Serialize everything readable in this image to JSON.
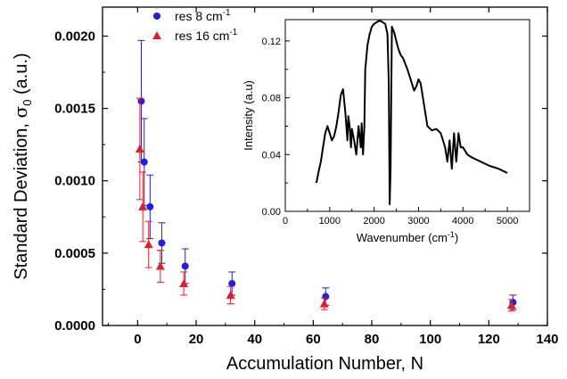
{
  "chart_data": [
    {
      "type": "scatter",
      "xlabel": "Accumulation Number, N",
      "ylabel_main": "Standard Deviation, ",
      "ylabel_sigma": "σ",
      "ylabel_sub": "0",
      "ylabel_unit": " (a.u.)",
      "xlim": [
        -12,
        140
      ],
      "ylim": [
        0,
        0.0022
      ],
      "xticks": [
        0,
        20,
        40,
        60,
        80,
        100,
        120,
        140
      ],
      "xtick_labels": [
        "0",
        "20",
        "40",
        "60",
        "80",
        "100",
        "120",
        "140"
      ],
      "yticks": [
        0,
        0.0005,
        0.001,
        0.0015,
        0.002
      ],
      "ytick_labels": [
        "0.0000",
        "0.0005",
        "0.0010",
        "0.0015",
        "0.0020"
      ],
      "legend_position": "top-left",
      "series": [
        {
          "name_main": "res 8 cm",
          "name_sup": "-1",
          "color": "#1f1fe0",
          "marker": "circle",
          "x": [
            1,
            2,
            4,
            8,
            16,
            32,
            64,
            128
          ],
          "y": [
            0.00155,
            0.00113,
            0.00082,
            0.00057,
            0.00041,
            0.00029,
            0.0002,
            0.00016
          ],
          "err": [
            0.00042,
            0.0003,
            0.00022,
            0.00014,
            0.00012,
            8e-05,
            6e-05,
            5e-05
          ]
        },
        {
          "name_main": "res 16 cm",
          "name_sup": "-1",
          "color": "#e01f2a",
          "marker": "triangle",
          "x": [
            1,
            2,
            4,
            8,
            16,
            32,
            64,
            128
          ],
          "y": [
            0.00122,
            0.00082,
            0.00056,
            0.00041,
            0.00029,
            0.00021,
            0.00015,
            0.00014
          ],
          "err": [
            0.00035,
            0.00024,
            0.00016,
            0.00011,
            8e-05,
            6e-05,
            4e-05,
            4e-05
          ]
        }
      ]
    },
    {
      "type": "line",
      "xlabel_main": "Wavenumber (cm",
      "xlabel_sup": "-1",
      "xlabel_end": ")",
      "ylabel": "Intensity (a.u)",
      "xlim": [
        0,
        5500
      ],
      "ylim": [
        0,
        0.135
      ],
      "xticks": [
        0,
        1000,
        2000,
        3000,
        4000,
        5000
      ],
      "xtick_labels": [
        "0",
        "1000",
        "2000",
        "3000",
        "4000",
        "5000"
      ],
      "yticks": [
        0,
        0.04,
        0.08,
        0.12
      ],
      "ytick_labels": [
        "0.00",
        "0.04",
        "0.08",
        "0.12"
      ],
      "color": "#000000",
      "x": [
        700,
        750,
        800,
        850,
        900,
        950,
        1000,
        1050,
        1100,
        1150,
        1200,
        1250,
        1300,
        1350,
        1400,
        1420,
        1450,
        1480,
        1500,
        1550,
        1600,
        1650,
        1700,
        1720,
        1750,
        1780,
        1800,
        1850,
        1900,
        1950,
        2000,
        2050,
        2100,
        2150,
        2200,
        2250,
        2300,
        2330,
        2350,
        2370,
        2400,
        2450,
        2500,
        2550,
        2600,
        2650,
        2700,
        2750,
        2800,
        2850,
        2900,
        2950,
        3000,
        3050,
        3100,
        3150,
        3200,
        3300,
        3400,
        3500,
        3600,
        3650,
        3700,
        3750,
        3800,
        3850,
        3900,
        3950,
        4000,
        4100,
        4200,
        4400,
        4600,
        4800,
        5000
      ],
      "y": [
        0.02,
        0.028,
        0.035,
        0.045,
        0.055,
        0.06,
        0.055,
        0.05,
        0.053,
        0.06,
        0.07,
        0.082,
        0.086,
        0.07,
        0.05,
        0.067,
        0.06,
        0.045,
        0.058,
        0.05,
        0.04,
        0.06,
        0.045,
        0.062,
        0.04,
        0.06,
        0.1,
        0.117,
        0.125,
        0.13,
        0.132,
        0.133,
        0.134,
        0.134,
        0.133,
        0.132,
        0.125,
        0.09,
        0.005,
        0.03,
        0.13,
        0.126,
        0.12,
        0.114,
        0.11,
        0.108,
        0.104,
        0.1,
        0.095,
        0.09,
        0.085,
        0.088,
        0.093,
        0.09,
        0.08,
        0.07,
        0.06,
        0.057,
        0.058,
        0.055,
        0.045,
        0.035,
        0.05,
        0.03,
        0.055,
        0.035,
        0.055,
        0.045,
        0.045,
        0.04,
        0.038,
        0.035,
        0.032,
        0.03,
        0.027
      ]
    }
  ]
}
